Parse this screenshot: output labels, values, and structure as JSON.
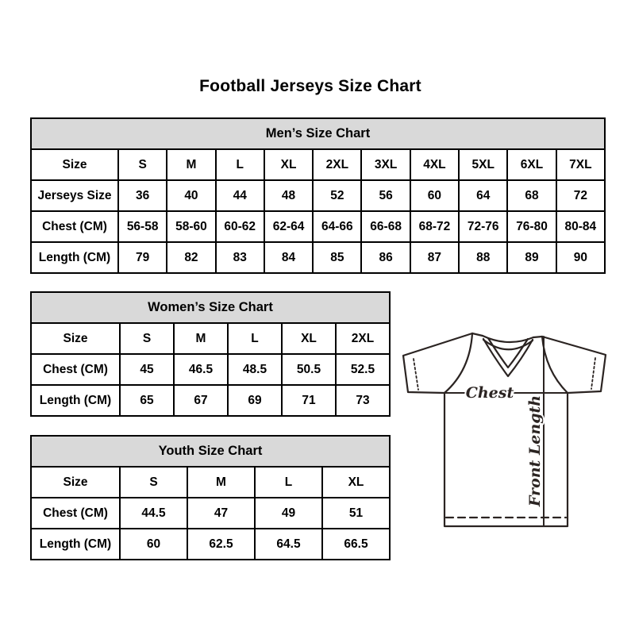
{
  "page": {
    "title": "Football Jerseys Size Chart"
  },
  "tables": {
    "mens": {
      "title": "Men’s Size Chart",
      "rows": [
        [
          "Size",
          "S",
          "M",
          "L",
          "XL",
          "2XL",
          "3XL",
          "4XL",
          "5XL",
          "6XL",
          "7XL"
        ],
        [
          "Jerseys Size",
          "36",
          "40",
          "44",
          "48",
          "52",
          "56",
          "60",
          "64",
          "68",
          "72"
        ],
        [
          "Chest (CM)",
          "56-58",
          "58-60",
          "60-62",
          "62-64",
          "64-66",
          "66-68",
          "68-72",
          "72-76",
          "76-80",
          "80-84"
        ],
        [
          "Length (CM)",
          "79",
          "82",
          "83",
          "84",
          "85",
          "86",
          "87",
          "88",
          "89",
          "90"
        ]
      ]
    },
    "womens": {
      "title": "Women’s Size Chart",
      "rows": [
        [
          "Size",
          "S",
          "M",
          "L",
          "XL",
          "2XL"
        ],
        [
          "Chest (CM)",
          "45",
          "46.5",
          "48.5",
          "50.5",
          "52.5"
        ],
        [
          "Length (CM)",
          "65",
          "67",
          "69",
          "71",
          "73"
        ]
      ]
    },
    "youth": {
      "title": "Youth Size Chart",
      "rows": [
        [
          "Size",
          "S",
          "M",
          "L",
          "XL"
        ],
        [
          "Chest (CM)",
          "44.5",
          "47",
          "49",
          "51"
        ],
        [
          "Length (CM)",
          "60",
          "62.5",
          "64.5",
          "66.5"
        ]
      ]
    }
  },
  "diagram": {
    "chest_label": "Chest",
    "front_length_label": "Front Length"
  },
  "colors": {
    "header_fill": "#d9d9d9",
    "table_border": "#000000",
    "text": "#000000",
    "jersey_line": "#2b2422",
    "background": "#ffffff"
  }
}
